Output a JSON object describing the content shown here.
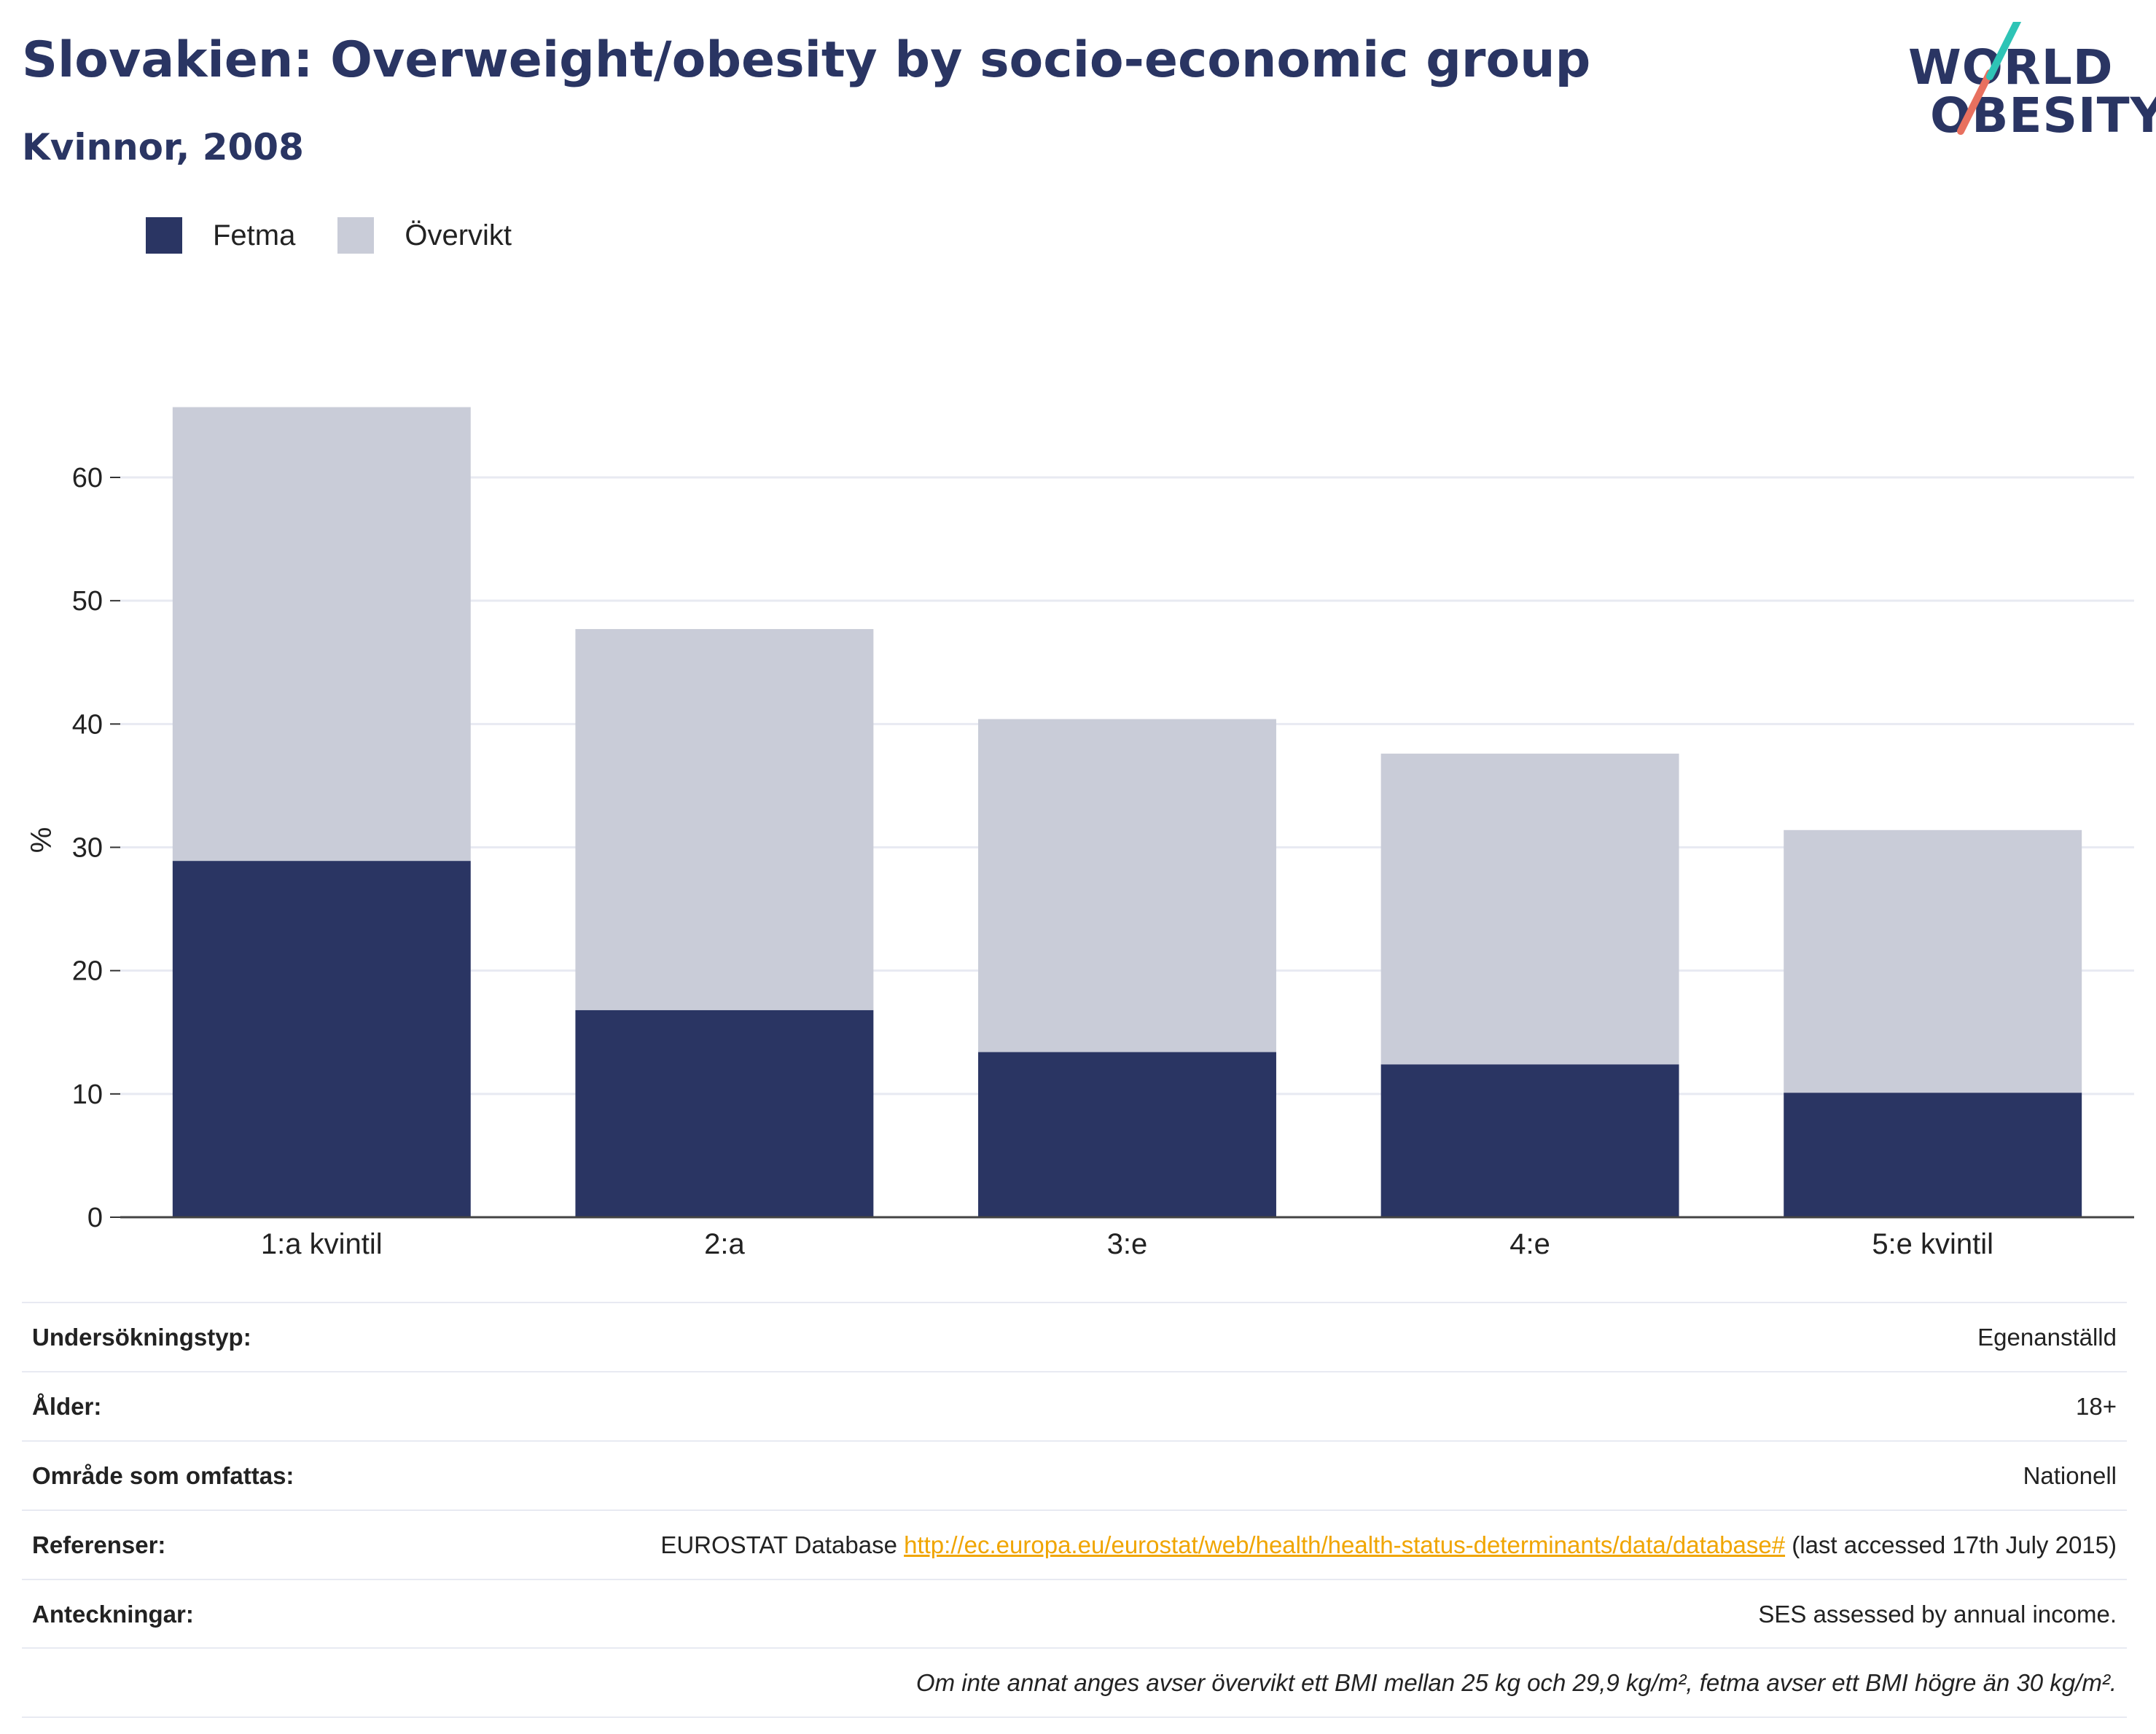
{
  "header": {
    "title": "Slovakien: Overweight/obesity by socio-economic group",
    "subtitle": "Kvinnor, 2008"
  },
  "logo": {
    "line1": "WORLD",
    "line2": "OBESITY",
    "colors": {
      "text": "#2a3563",
      "slash_top": "#2ec4b6",
      "slash_bottom": "#e8705f"
    }
  },
  "legend": [
    {
      "label": "Fetma",
      "color": "#2a3563"
    },
    {
      "label": "Övervikt",
      "color": "#c9ccd8"
    }
  ],
  "chart_data": {
    "type": "bar",
    "stacked": true,
    "categories": [
      "1:a kvintil",
      "2:a",
      "3:e",
      "4:e",
      "5:e kvintil"
    ],
    "series": [
      {
        "name": "Fetma",
        "color": "#2a3563",
        "values": [
          28.9,
          16.8,
          13.4,
          12.4,
          10.1
        ]
      },
      {
        "name": "Övervikt",
        "color": "#c9ccd8",
        "values": [
          36.8,
          30.9,
          27.0,
          25.2,
          21.3
        ]
      }
    ],
    "ylabel": "%",
    "xlabel": "",
    "ylim": [
      0,
      70
    ],
    "yticks": [
      0,
      10,
      20,
      30,
      40,
      50,
      60
    ],
    "grid": true,
    "legend_position": "top-left"
  },
  "info": {
    "rows": [
      {
        "key": "Undersökningstyp:",
        "value": "Egenanställd"
      },
      {
        "key": "Ålder:",
        "value": "18+"
      },
      {
        "key": "Område som omfattas:",
        "value": "Nationell"
      }
    ],
    "references": {
      "key": "Referenser:",
      "prefix": "EUROSTAT Database ",
      "link": "http://ec.europa.eu/eurostat/web/health/health-status-determinants/data/database#",
      "suffix": " (last accessed 17th July 2015)"
    },
    "notes": {
      "key": "Anteckningar:",
      "value": "SES assessed by annual income."
    },
    "footnote": "Om inte annat anges avser övervikt ett BMI mellan 25 kg och 29,9 kg/m², fetma avser ett BMI högre än 30 kg/m²."
  }
}
